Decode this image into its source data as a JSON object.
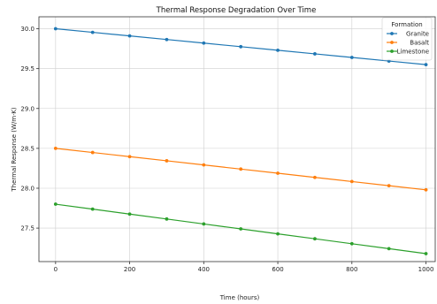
{
  "chart_data": {
    "type": "line",
    "title": "Thermal Response Degradation Over Time",
    "xlabel": "Time (hours)",
    "ylabel": "Thermal Response (W/m·K)",
    "xlim": [
      -45,
      1025
    ],
    "ylim": [
      27.08,
      30.15
    ],
    "x_ticks": [
      0,
      200,
      400,
      600,
      800,
      1000
    ],
    "y_ticks": [
      27.5,
      28.0,
      28.5,
      29.0,
      29.5,
      30.0
    ],
    "x_tick_labels": [
      "0",
      "200",
      "400",
      "600",
      "800",
      "1000"
    ],
    "y_tick_labels": [
      "27.5",
      "28.0",
      "28.5",
      "29.0",
      "29.5",
      "30.0"
    ],
    "grid": true,
    "legend": {
      "title": "Formation",
      "placement": "top-right"
    },
    "x": [
      0,
      100,
      200,
      300,
      400,
      500,
      600,
      700,
      800,
      900,
      1000
    ],
    "series": [
      {
        "name": "Granite",
        "color": "#1f77b4",
        "values": [
          30.0,
          29.955,
          29.91,
          29.865,
          29.82,
          29.775,
          29.73,
          29.685,
          29.64,
          29.595,
          29.55
        ]
      },
      {
        "name": "Basalt",
        "color": "#ff7f0e",
        "values": [
          28.5,
          28.448,
          28.396,
          28.344,
          28.292,
          28.24,
          28.188,
          28.136,
          28.084,
          28.032,
          27.98
        ]
      },
      {
        "name": "Limestone",
        "color": "#2ca02c",
        "values": [
          27.8,
          27.738,
          27.676,
          27.614,
          27.552,
          27.49,
          27.428,
          27.366,
          27.304,
          27.242,
          27.18
        ]
      }
    ]
  }
}
